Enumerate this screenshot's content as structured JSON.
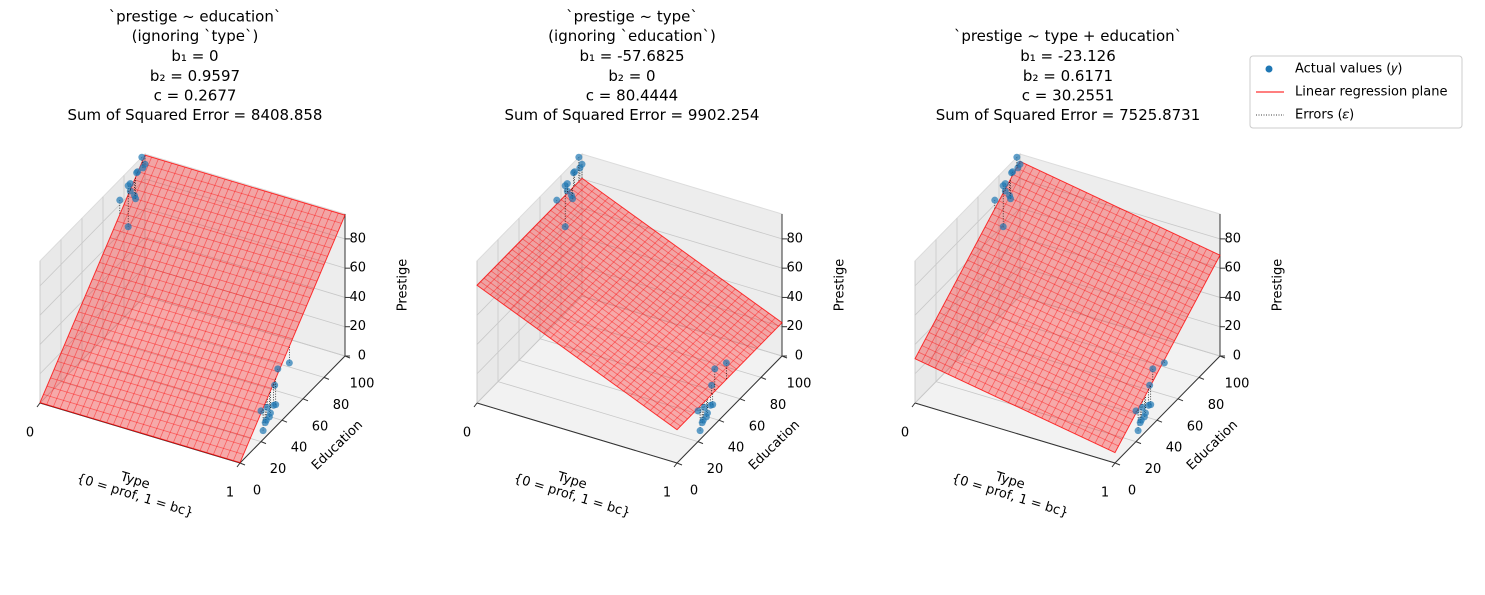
{
  "chart_data": [
    {
      "type": "scatter3d",
      "title_lines": [
        "`prestige ~ education`",
        "(ignoring `type`)"
      ],
      "coefficients": [
        {
          "label": "b₁ = ",
          "value": 0
        },
        {
          "label": "b₂ = ",
          "value": 0.9597
        },
        {
          "label": "c = ",
          "value": 0.2677
        }
      ],
      "sse": {
        "label": "Sum of Squared Error = ",
        "value": 8408.858
      },
      "xlabel": [
        "Type",
        "{0 = prof, 1 = bc}"
      ],
      "ylabel": "Education",
      "zlabel": "Prestige",
      "xticks": [
        0,
        1
      ],
      "yticks": [
        0,
        20,
        40,
        60,
        80,
        100
      ],
      "zticks": [
        0,
        20,
        40,
        60,
        80
      ],
      "xlim": [
        0,
        1
      ],
      "ylim": [
        0,
        100
      ],
      "zlim": [
        0,
        97
      ],
      "x": [
        0,
        0,
        0,
        0,
        0,
        0,
        0,
        0,
        0,
        0,
        0,
        0,
        1,
        1,
        1,
        1,
        1,
        1,
        1,
        1,
        1,
        1,
        1,
        1
      ],
      "y": [
        86,
        76,
        92,
        90,
        86,
        84,
        93,
        100,
        98,
        97,
        84,
        91,
        20,
        28,
        33,
        25,
        22,
        32,
        24,
        34,
        36,
        47,
        26,
        29
      ],
      "z": [
        82,
        83,
        90,
        76,
        87,
        87,
        90,
        90,
        89,
        97,
        59,
        73,
        21,
        11,
        29,
        11,
        6,
        16,
        10,
        15,
        38,
        34,
        19,
        13
      ]
    },
    {
      "type": "scatter3d",
      "title_lines": [
        "`prestige ~ type`",
        "(ignoring `education`)"
      ],
      "coefficients": [
        {
          "label": "b₁ = ",
          "value": -57.6825
        },
        {
          "label": "b₂ = ",
          "value": 0
        },
        {
          "label": "c = ",
          "value": 80.4444
        }
      ],
      "sse": {
        "label": "Sum of Squared Error = ",
        "value": 9902.254
      },
      "xlabel": [
        "Type",
        "{0 = prof, 1 = bc}"
      ],
      "ylabel": "Education",
      "zlabel": "Prestige",
      "xticks": [
        0,
        1
      ],
      "yticks": [
        0,
        20,
        40,
        60,
        80,
        100
      ],
      "zticks": [
        0,
        20,
        40,
        60,
        80
      ],
      "xlim": [
        0,
        1
      ],
      "ylim": [
        0,
        100
      ],
      "zlim": [
        0,
        97
      ],
      "x": [
        0,
        0,
        0,
        0,
        0,
        0,
        0,
        0,
        0,
        0,
        0,
        0,
        1,
        1,
        1,
        1,
        1,
        1,
        1,
        1,
        1,
        1,
        1,
        1
      ],
      "y": [
        86,
        76,
        92,
        90,
        86,
        84,
        93,
        100,
        98,
        97,
        84,
        91,
        20,
        28,
        33,
        25,
        22,
        32,
        24,
        34,
        36,
        47,
        26,
        29
      ],
      "z": [
        82,
        83,
        90,
        76,
        87,
        87,
        90,
        90,
        89,
        97,
        59,
        73,
        21,
        11,
        29,
        11,
        6,
        16,
        10,
        15,
        38,
        34,
        19,
        13
      ]
    },
    {
      "type": "scatter3d",
      "title_lines": [
        "`prestige ~ type + education`"
      ],
      "coefficients": [
        {
          "label": "b₁ = ",
          "value": -23.126
        },
        {
          "label": "b₂ = ",
          "value": 0.6171
        },
        {
          "label": "c = ",
          "value": 30.2551
        }
      ],
      "sse": {
        "label": "Sum of Squared Error = ",
        "value": 7525.8731
      },
      "xlabel": [
        "Type",
        "{0 = prof, 1 = bc}"
      ],
      "ylabel": "Education",
      "zlabel": "Prestige",
      "xticks": [
        0,
        1
      ],
      "yticks": [
        0,
        20,
        40,
        60,
        80,
        100
      ],
      "zticks": [
        0,
        20,
        40,
        60,
        80
      ],
      "xlim": [
        0,
        1
      ],
      "ylim": [
        0,
        100
      ],
      "zlim": [
        0,
        97
      ],
      "x": [
        0,
        0,
        0,
        0,
        0,
        0,
        0,
        0,
        0,
        0,
        0,
        0,
        1,
        1,
        1,
        1,
        1,
        1,
        1,
        1,
        1,
        1,
        1,
        1
      ],
      "y": [
        86,
        76,
        92,
        90,
        86,
        84,
        93,
        100,
        98,
        97,
        84,
        91,
        20,
        28,
        33,
        25,
        22,
        32,
        24,
        34,
        36,
        47,
        26,
        29
      ],
      "z": [
        82,
        83,
        90,
        76,
        87,
        87,
        90,
        90,
        89,
        97,
        59,
        73,
        21,
        11,
        29,
        11,
        6,
        16,
        10,
        15,
        38,
        34,
        19,
        13
      ]
    }
  ],
  "legend": {
    "position": "upper right",
    "entries": [
      {
        "name": "Actual values (𝑦)",
        "color": "#1f77b4"
      },
      {
        "name": "Linear regression plane",
        "color": "#ff0000"
      },
      {
        "name": "Errors (𝜀)",
        "color": "#000000"
      }
    ]
  }
}
